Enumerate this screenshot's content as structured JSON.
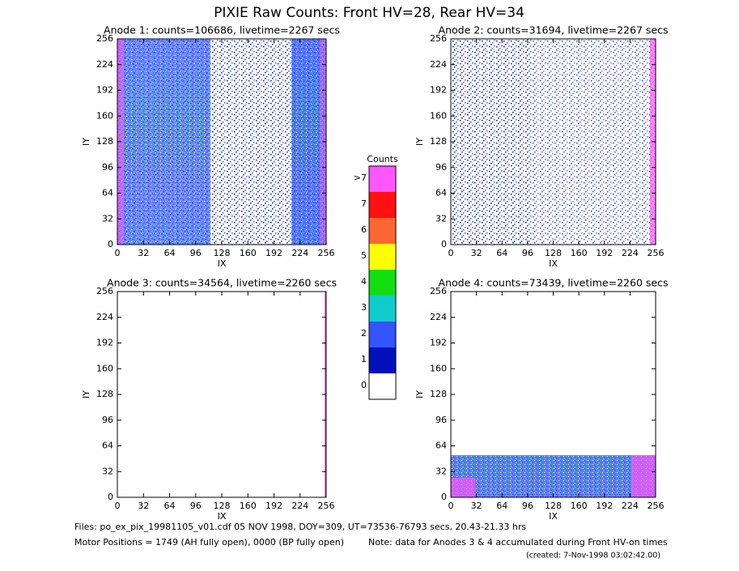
{
  "title": "PIXIE Raw Counts:  Front HV=28, Rear HV=34",
  "panels": [
    {
      "title": "Anode 1: counts=106686, livetime=2267 secs",
      "xlabel": "IX",
      "ylabel": "IY",
      "xlim": [
        0,
        256
      ],
      "ylim": [
        0,
        256
      ],
      "xticks": [
        0,
        32,
        64,
        96,
        128,
        160,
        192,
        224,
        256
      ],
      "yticks": [
        0,
        32,
        64,
        96,
        128,
        160,
        192,
        224,
        256
      ]
    },
    {
      "title": "Anode 2: counts=31694, livetime=2267 secs",
      "xlabel": "IX",
      "ylabel": "IY",
      "xlim": [
        0,
        256
      ],
      "ylim": [
        0,
        256
      ],
      "xticks": [
        0,
        32,
        64,
        96,
        128,
        160,
        192,
        224,
        256
      ],
      "yticks": [
        0,
        32,
        64,
        96,
        128,
        160,
        192,
        224,
        256
      ]
    },
    {
      "title": "Anode 3: counts=34564, livetime=2260 secs",
      "xlabel": "IX",
      "ylabel": "IY",
      "xlim": [
        0,
        256
      ],
      "ylim": [
        0,
        256
      ],
      "xticks": [
        0,
        32,
        64,
        96,
        128,
        160,
        192,
        224,
        256
      ],
      "yticks": [
        0,
        32,
        64,
        96,
        128,
        160,
        192,
        224,
        256
      ]
    },
    {
      "title": "Anode 4: counts=73439, livetime=2260 secs",
      "xlabel": "IX",
      "ylabel": "IY",
      "xlim": [
        0,
        256
      ],
      "ylim": [
        0,
        256
      ],
      "xticks": [
        0,
        32,
        64,
        96,
        128,
        160,
        192,
        224,
        256
      ],
      "yticks": [
        0,
        32,
        64,
        96,
        128,
        160,
        192,
        224,
        256
      ]
    }
  ],
  "colorbar": {
    "title": "Counts",
    "labels": [
      "0",
      "1",
      "2",
      "3",
      "4",
      "5",
      "6",
      "7",
      ">7"
    ],
    "colors": [
      "#ffffff",
      "#0011bb",
      "#3355ff",
      "#11cccc",
      "#11dd11",
      "#ffff00",
      "#ff6633",
      "#ff1111",
      "#ff55ff"
    ]
  },
  "footer": {
    "files": "Files: po_ex_pix_19981105_v01.cdf    05 NOV 1998, DOY=309, UT=73536-76793 secs, 20.43-21.33 hrs",
    "motor": "Motor Positions = 1749 (AH fully open), 0000 (BP fully open)",
    "note": "Note: data for Anodes 3 & 4 accumulated during Front HV-on times",
    "created": "(created:  7-Nov-1998 03:02:42.00)"
  }
}
